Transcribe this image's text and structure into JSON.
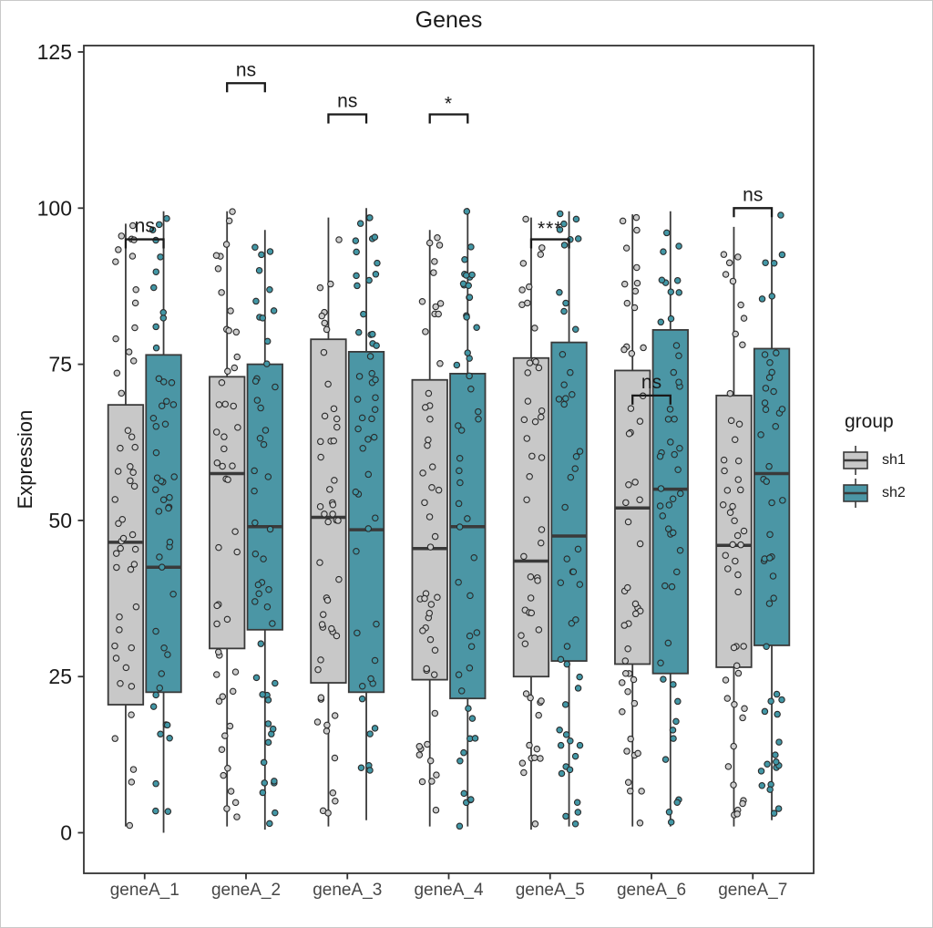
{
  "title": "Genes",
  "y_axis": {
    "label": "Expression",
    "ticks": [
      0,
      25,
      50,
      75,
      100,
      125
    ]
  },
  "x_axis": {
    "categories": [
      "geneA_1",
      "geneA_2",
      "geneA_3",
      "geneA_4",
      "geneA_5",
      "geneA_6",
      "geneA_7"
    ]
  },
  "legend": {
    "title": "group",
    "items": [
      "sh1",
      "sh2"
    ],
    "position": "right"
  },
  "colors": {
    "sh1_fill": "#C8C8C8",
    "sh2_fill": "#4B96A5",
    "sh1_point": "#CDCDCD",
    "sh2_point": "#4297A6",
    "box_stroke": "#3A3A3A",
    "point_stroke": "#2B2B2B",
    "bracket": "#1A1A1A",
    "panel_border": "#333333",
    "axis_tick": "#333333",
    "x_tick_label": "#474747",
    "y_tick_label": "#1A1A1A"
  },
  "chart_data": {
    "type": "boxplot",
    "title": "Genes",
    "xlabel": "",
    "ylabel": "Expression",
    "categories": [
      "geneA_1",
      "geneA_2",
      "geneA_3",
      "geneA_4",
      "geneA_5",
      "geneA_6",
      "geneA_7"
    ],
    "groups": [
      "sh1",
      "sh2"
    ],
    "y_ticks": [
      0,
      25,
      50,
      75,
      100,
      125
    ],
    "ylim": [
      -6.5,
      126
    ],
    "grid": false,
    "legend_position": "right",
    "jitter_points": true,
    "points_per_box": 50,
    "series": [
      {
        "name": "sh1",
        "color": "#C8C8C8",
        "point_color": "#CDCDCD",
        "boxes": [
          {
            "category": "geneA_1",
            "whisker_low": 1,
            "q1": 20.5,
            "median": 46.5,
            "q3": 68.5,
            "whisker_high": 97.5
          },
          {
            "category": "geneA_2",
            "whisker_low": 1,
            "q1": 29.5,
            "median": 57.5,
            "q3": 73,
            "whisker_high": 99.5
          },
          {
            "category": "geneA_3",
            "whisker_low": 1,
            "q1": 24,
            "median": 50.5,
            "q3": 79,
            "whisker_high": 98.5
          },
          {
            "category": "geneA_4",
            "whisker_low": 1,
            "q1": 24.5,
            "median": 45.5,
            "q3": 72.5,
            "whisker_high": 96.5
          },
          {
            "category": "geneA_5",
            "whisker_low": 0.5,
            "q1": 25,
            "median": 43.5,
            "q3": 76,
            "whisker_high": 98.5
          },
          {
            "category": "geneA_6",
            "whisker_low": 1,
            "q1": 27,
            "median": 52,
            "q3": 74,
            "whisker_high": 99
          },
          {
            "category": "geneA_7",
            "whisker_low": 1,
            "q1": 26.5,
            "median": 46,
            "q3": 70,
            "whisker_high": 97
          }
        ]
      },
      {
        "name": "sh2",
        "color": "#4B96A5",
        "point_color": "#4297A6",
        "boxes": [
          {
            "category": "geneA_1",
            "whisker_low": 0,
            "q1": 22.5,
            "median": 42.5,
            "q3": 76.5,
            "whisker_high": 99.5
          },
          {
            "category": "geneA_2",
            "whisker_low": 0.5,
            "q1": 32.5,
            "median": 49,
            "q3": 75,
            "whisker_high": 96.5
          },
          {
            "category": "geneA_3",
            "whisker_low": 2,
            "q1": 22.5,
            "median": 48.5,
            "q3": 77,
            "whisker_high": 100
          },
          {
            "category": "geneA_4",
            "whisker_low": 1,
            "q1": 21.5,
            "median": 49,
            "q3": 73.5,
            "whisker_high": 100
          },
          {
            "category": "geneA_5",
            "whisker_low": 1,
            "q1": 27.5,
            "median": 47.5,
            "q3": 78.5,
            "whisker_high": 99.5
          },
          {
            "category": "geneA_6",
            "whisker_low": 1,
            "q1": 25.5,
            "median": 55,
            "q3": 80.5,
            "whisker_high": 99.5
          },
          {
            "category": "geneA_7",
            "whisker_low": 2,
            "q1": 30,
            "median": 57.5,
            "q3": 77.5,
            "whisker_high": 99
          }
        ]
      }
    ],
    "significance": [
      {
        "category": "geneA_1",
        "label": "ns",
        "y": 95
      },
      {
        "category": "geneA_2",
        "label": "ns",
        "y": 120
      },
      {
        "category": "geneA_3",
        "label": "ns",
        "y": 115
      },
      {
        "category": "geneA_4",
        "label": "*",
        "y": 115
      },
      {
        "category": "geneA_5",
        "label": "***",
        "y": 95
      },
      {
        "category": "geneA_6",
        "label": "ns",
        "y": 70
      },
      {
        "category": "geneA_7",
        "label": "ns",
        "y": 100
      }
    ]
  }
}
